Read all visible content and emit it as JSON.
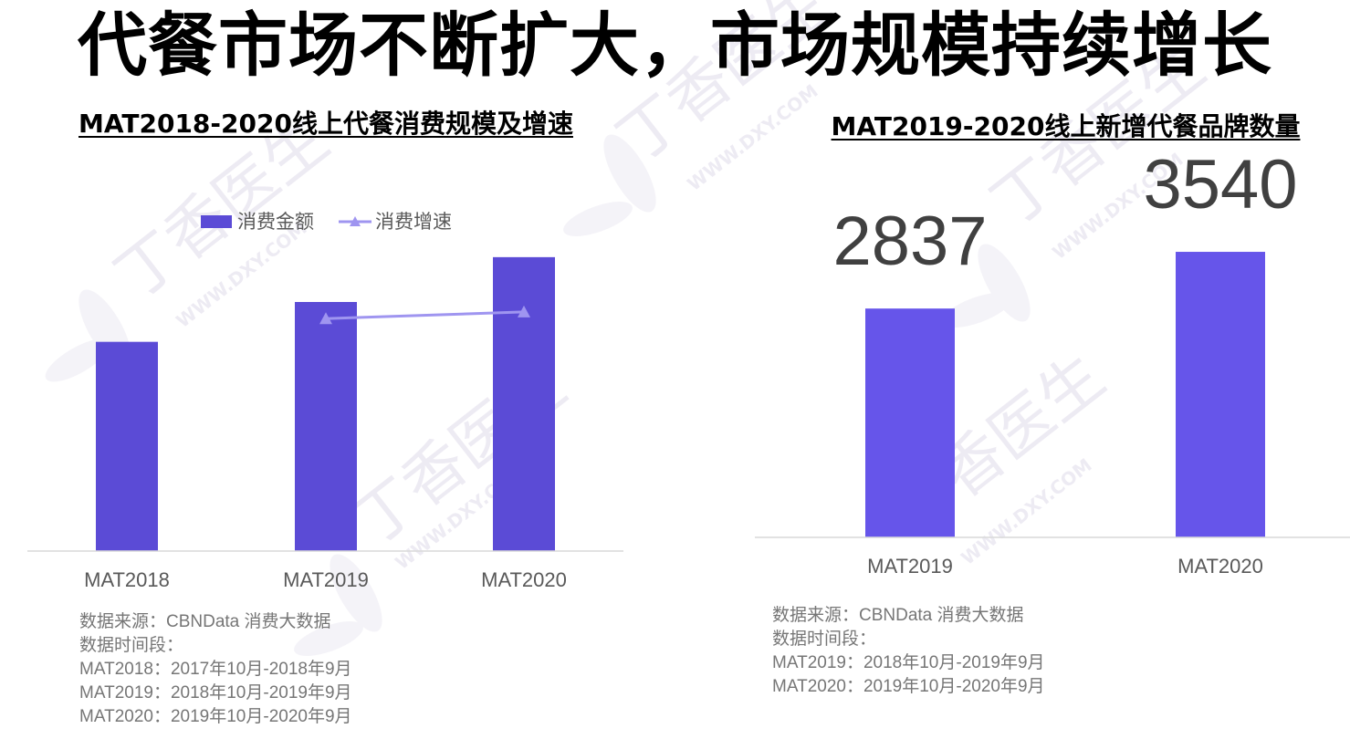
{
  "page": {
    "title": "代餐市场不断扩大，市场规模持续增长",
    "colors": {
      "left_bar": "#5b4bd6",
      "right_bar": "#6655ea",
      "line": "#9f95f0",
      "axis": "#d9d9d9",
      "value_text": "#404040",
      "note_text": "#767676"
    },
    "watermark": {
      "text": "丁香医生",
      "subtext": "WWW.DXY.COM"
    }
  },
  "left_notes": {
    "source": "数据来源：CBNData 消费大数据",
    "period_label": "数据时间段：",
    "lines": [
      "MAT2018：2017年10月-2018年9月",
      "MAT2019：2018年10月-2019年9月",
      "MAT2020：2019年10月-2020年9月"
    ]
  },
  "right_notes": {
    "source": "数据来源：CBNData 消费大数据",
    "period_label": "数据时间段：",
    "lines": [
      "MAT2019：2018年10月-2019年9月",
      "MAT2020：2019年10月-2020年9月"
    ]
  },
  "chart_data": [
    {
      "type": "bar",
      "title": "MAT2018-2020线上代餐消费规模及增速",
      "categories": [
        "MAT2018",
        "MAT2019",
        "MAT2020"
      ],
      "legend": {
        "placement": "top",
        "entries": [
          "消费金额",
          "消费增速"
        ]
      },
      "series": [
        {
          "name": "消费金额",
          "type": "bar",
          "values": [
            0.63,
            0.75,
            0.885
          ]
        },
        {
          "name": "消费增速",
          "type": "line",
          "values": [
            null,
            0.7,
            0.72
          ]
        }
      ],
      "ylim": [
        0,
        1
      ],
      "grid": false,
      "value_labels": false
    },
    {
      "type": "bar",
      "title": "MAT2019-2020线上新增代餐品牌数量",
      "categories": [
        "MAT2019",
        "MAT2020"
      ],
      "values": [
        2837,
        3540
      ],
      "ylim": [
        0,
        4400
      ],
      "grid": false,
      "value_labels": true
    }
  ]
}
